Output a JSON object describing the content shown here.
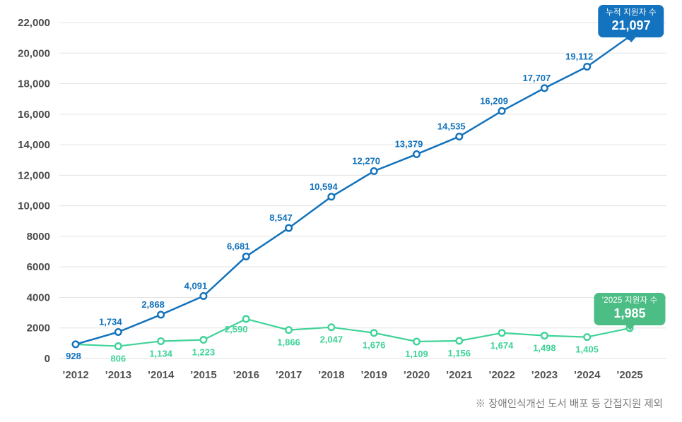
{
  "chart_data": {
    "type": "line",
    "title": "",
    "categories": [
      "’2012",
      "’2013",
      "’2014",
      "’2015",
      "’2016",
      "’2017",
      "’2018",
      "’2019",
      "’2020",
      "’2021",
      "’2022",
      "’2023",
      "’2024",
      "’2025"
    ],
    "ylim": [
      0,
      22000
    ],
    "grid": true,
    "legend_position": "none",
    "y_ticks": [
      {
        "value": 0,
        "label": "0"
      },
      {
        "value": 2000,
        "label": "2000"
      },
      {
        "value": 4000,
        "label": "4000"
      },
      {
        "value": 6000,
        "label": "6000"
      },
      {
        "value": 8000,
        "label": "8000"
      },
      {
        "value": 10000,
        "label": "10,000"
      },
      {
        "value": 12000,
        "label": "12,000"
      },
      {
        "value": 14000,
        "label": "14,000"
      },
      {
        "value": 16000,
        "label": "16,000"
      },
      {
        "value": 18000,
        "label": "18,000"
      },
      {
        "value": 20000,
        "label": "20,000"
      },
      {
        "value": 22000,
        "label": "22,000"
      }
    ],
    "series": [
      {
        "name": "누적 지원자 수",
        "color": "#1272bb",
        "values": [
          928,
          1734,
          2868,
          4091,
          6681,
          8547,
          10594,
          12270,
          13379,
          14535,
          16209,
          17707,
          19112,
          21097
        ],
        "point_labels": [
          "928",
          "1,734",
          "2,868",
          "4,091",
          "6,681",
          "8,547",
          "10,594",
          "12,270",
          "13,379",
          "14,535",
          "16,209",
          "17,707",
          "19,112",
          ""
        ]
      },
      {
        "name": "지원자 수",
        "color": "#40d398",
        "values": [
          928,
          806,
          1134,
          1223,
          2590,
          1866,
          2047,
          1676,
          1109,
          1156,
          1674,
          1498,
          1405,
          1985
        ],
        "point_labels": [
          "",
          "806",
          "1,134",
          "1,223",
          "2,590",
          "1,866",
          "2,047",
          "1,676",
          "1,109",
          "1,156",
          "1,674",
          "1,498",
          "1,405",
          ""
        ]
      }
    ],
    "footnote": "※ 장애인식개선 도서 배포 등 간접지원 제외"
  },
  "badges": {
    "cumulative": {
      "title": "누적 지원자 수",
      "value": "21,097",
      "color": "#1473be"
    },
    "yearly": {
      "title": "’2025 지원자 수",
      "value": "1,985",
      "color": "#4dbd86"
    }
  }
}
